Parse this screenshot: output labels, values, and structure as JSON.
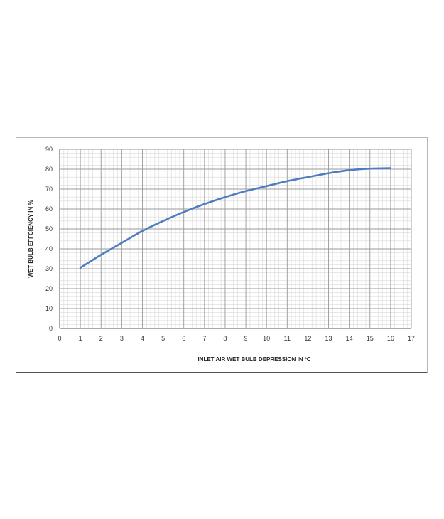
{
  "chart_data": {
    "type": "line",
    "title": "",
    "xlabel": "INLET AIR WET BULB DEPRESSION IN ",
    "xlabel_unit": "ºC",
    "ylabel": "WET BULB EFFCIENCY IN %",
    "xlim": [
      0,
      17
    ],
    "ylim": [
      0,
      90
    ],
    "x_ticks": [
      "0",
      "1",
      "2",
      "3",
      "4",
      "5",
      "6",
      "7",
      "8",
      "9",
      "10",
      "11",
      "12",
      "13",
      "14",
      "15",
      "16",
      "17"
    ],
    "y_ticks": [
      "0",
      "10",
      "20",
      "30",
      "40",
      "50",
      "60",
      "70",
      "80",
      "90"
    ],
    "grid": true,
    "minor_grid": true,
    "legend": "none",
    "line_color": "#4f7cbf",
    "series": [
      {
        "x": [
          1,
          2,
          3,
          4,
          5,
          6,
          7,
          8,
          9,
          10,
          11,
          12,
          13,
          14,
          15,
          16
        ],
        "values": [
          30.5,
          37,
          43,
          49,
          54,
          58.5,
          62.5,
          66,
          69,
          71.5,
          74,
          76,
          78,
          79.5,
          80.3,
          80.5
        ]
      }
    ]
  }
}
